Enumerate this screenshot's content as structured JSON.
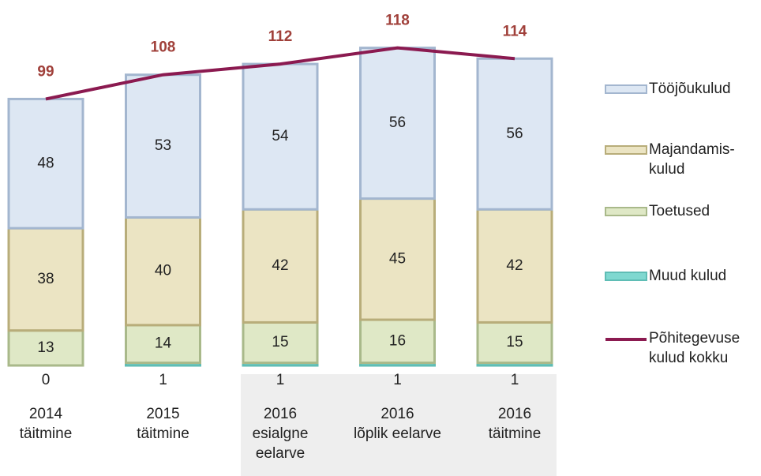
{
  "chart_data": {
    "type": "bar",
    "stacked": true,
    "categories": [
      "2014\ntäitmine",
      "2015\ntäitmine",
      "2016\nesialgne\neelarve",
      "2016\nlõplik eelarve",
      "2016\ntäitmine"
    ],
    "series": [
      {
        "name": "Muud kulud",
        "color": "#7fd8d0",
        "values": [
          0,
          1,
          1,
          1,
          1
        ]
      },
      {
        "name": "Toetused",
        "color": "#dfe8c6",
        "values": [
          13,
          14,
          15,
          16,
          15
        ]
      },
      {
        "name": "Majandamis-\nkulud",
        "color": "#ebe4c3",
        "values": [
          38,
          40,
          42,
          45,
          42
        ]
      },
      {
        "name": "Tööjõukulud",
        "color": "#dde7f3",
        "values": [
          48,
          53,
          54,
          56,
          56
        ]
      },
      {
        "name": "Põhitegevuse\nkulud kokku",
        "color": "#8b1a50",
        "type": "line",
        "values": [
          99,
          108,
          112,
          118,
          114
        ]
      }
    ]
  }
}
